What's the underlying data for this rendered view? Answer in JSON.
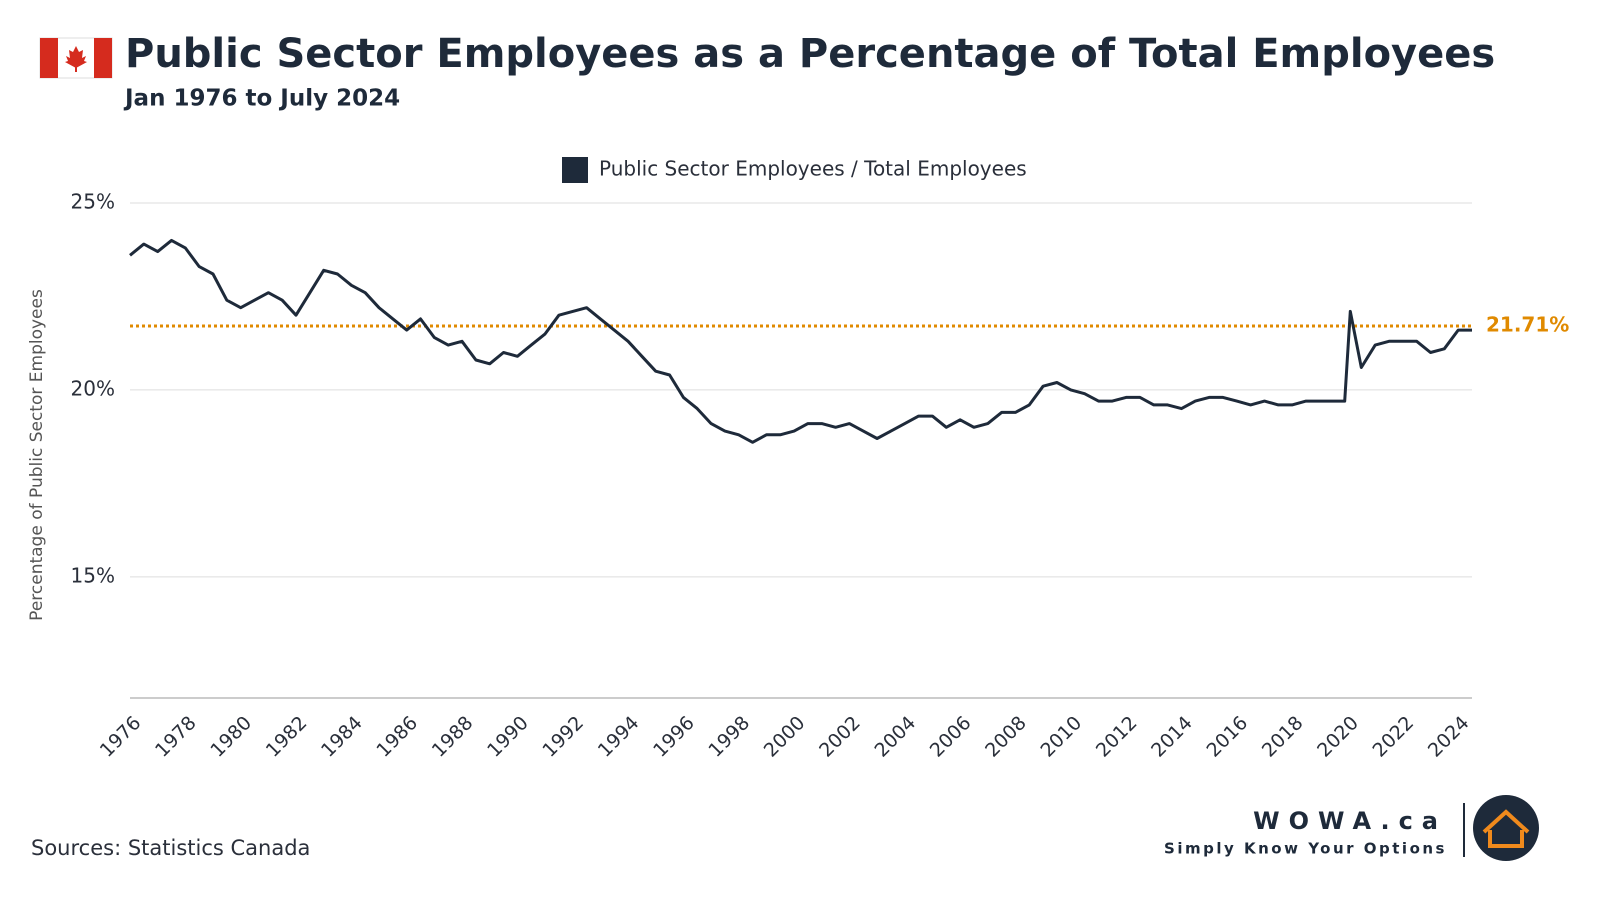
{
  "chart_data": {
    "type": "line",
    "title": "Public Sector Employees as a Percentage of Total Employees",
    "subtitle": "Jan 1976 to July 2024",
    "y_label": "Percentage of Public Sector Employees",
    "source": "Sources: Statistics Canada",
    "brand": "WOWA.ca",
    "tagline": "Simply Know Your Options",
    "xlim": [
      1976,
      2024.5
    ],
    "xticks": [
      1976,
      1978,
      1980,
      1982,
      1984,
      1986,
      1988,
      1990,
      1992,
      1994,
      1996,
      1998,
      2000,
      2002,
      2004,
      2006,
      2008,
      2010,
      2012,
      2014,
      2016,
      2018,
      2020,
      2022,
      2024
    ],
    "ylim": [
      11.76,
      25
    ],
    "yticks": [
      {
        "value": 15,
        "label": "15%"
      },
      {
        "value": 20,
        "label": "20%"
      },
      {
        "value": 25,
        "label": "25%"
      }
    ],
    "grid": true,
    "reference_line": {
      "value": 21.71,
      "label": "21.71%",
      "color": "#e08a00"
    },
    "x": [
      1976.0,
      1976.5,
      1977.0,
      1977.5,
      1978.0,
      1978.5,
      1979.0,
      1979.5,
      1980.0,
      1980.5,
      1981.0,
      1981.5,
      1982.0,
      1982.5,
      1983.0,
      1983.5,
      1984.0,
      1984.5,
      1985.0,
      1985.5,
      1986.0,
      1986.5,
      1987.0,
      1987.5,
      1988.0,
      1988.5,
      1989.0,
      1989.5,
      1990.0,
      1990.5,
      1991.0,
      1991.5,
      1992.0,
      1992.5,
      1993.0,
      1993.5,
      1994.0,
      1994.5,
      1995.0,
      1995.5,
      1996.0,
      1996.5,
      1997.0,
      1997.5,
      1998.0,
      1998.5,
      1999.0,
      1999.5,
      2000.0,
      2000.5,
      2001.0,
      2001.5,
      2002.0,
      2002.5,
      2003.0,
      2003.5,
      2004.0,
      2004.5,
      2005.0,
      2005.5,
      2006.0,
      2006.5,
      2007.0,
      2007.5,
      2008.0,
      2008.5,
      2009.0,
      2009.5,
      2010.0,
      2010.5,
      2011.0,
      2011.5,
      2012.0,
      2012.5,
      2013.0,
      2013.5,
      2014.0,
      2014.5,
      2015.0,
      2015.5,
      2016.0,
      2016.5,
      2017.0,
      2017.5,
      2018.0,
      2018.5,
      2019.0,
      2019.5,
      2019.9,
      2020.1,
      2020.5,
      2021.0,
      2021.5,
      2022.0,
      2022.5,
      2023.0,
      2023.5,
      2024.0,
      2024.5
    ],
    "series": [
      {
        "name": "Public Sector Employees / Total Employees",
        "color": "#1e2a3a",
        "values": [
          23.6,
          23.9,
          23.7,
          24.0,
          23.8,
          23.3,
          23.1,
          22.4,
          22.2,
          22.4,
          22.6,
          22.4,
          22.0,
          22.6,
          23.2,
          23.1,
          22.8,
          22.6,
          22.2,
          21.9,
          21.6,
          21.9,
          21.4,
          21.2,
          21.3,
          20.8,
          20.7,
          21.0,
          20.9,
          21.2,
          21.5,
          22.0,
          22.1,
          22.2,
          21.9,
          21.6,
          21.3,
          20.9,
          20.5,
          20.4,
          19.8,
          19.5,
          19.1,
          18.9,
          18.8,
          18.6,
          18.8,
          18.8,
          18.9,
          19.1,
          19.1,
          19.0,
          19.1,
          18.9,
          18.7,
          18.9,
          19.1,
          19.3,
          19.3,
          19.0,
          19.2,
          19.0,
          19.1,
          19.4,
          19.4,
          19.6,
          20.1,
          20.2,
          20.0,
          19.9,
          19.7,
          19.7,
          19.8,
          19.8,
          19.6,
          19.6,
          19.5,
          19.7,
          19.8,
          19.8,
          19.7,
          19.6,
          19.7,
          19.6,
          19.6,
          19.7,
          19.7,
          19.7,
          19.7,
          22.1,
          20.6,
          21.2,
          21.3,
          21.3,
          21.3,
          21.0,
          21.1,
          21.6,
          21.6
        ]
      }
    ]
  }
}
